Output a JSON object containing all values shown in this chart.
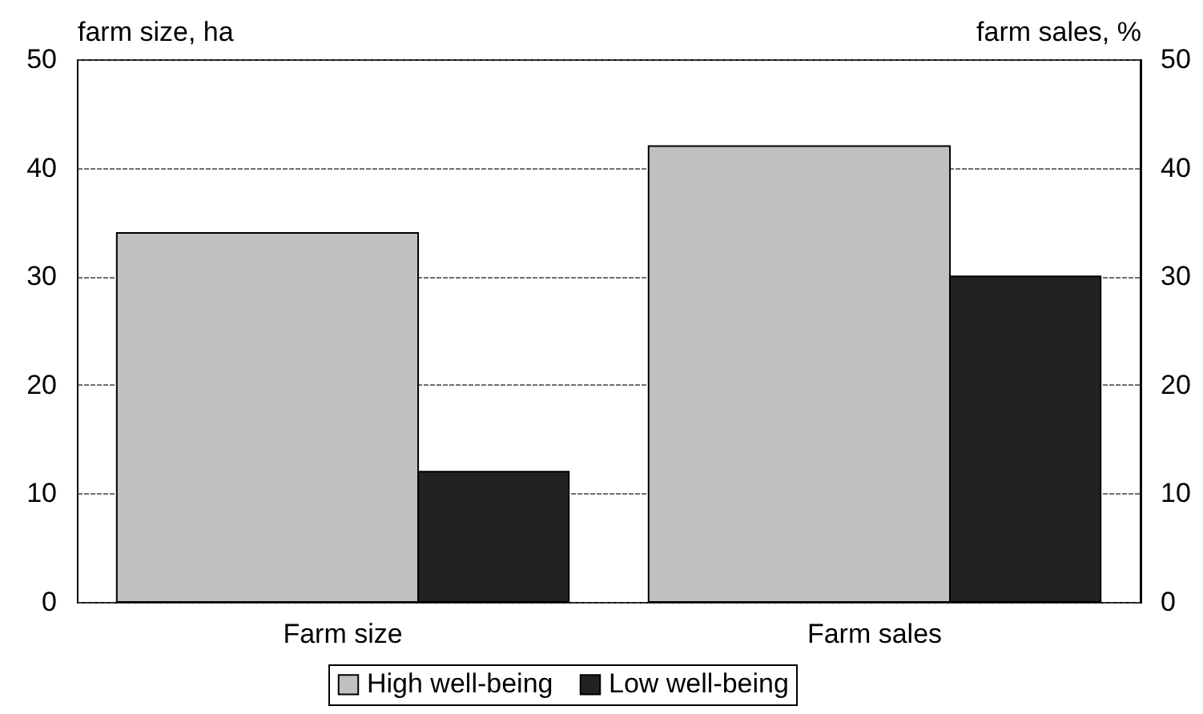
{
  "chart_data": {
    "type": "bar",
    "categories": [
      "Farm size",
      "Farm sales"
    ],
    "series": [
      {
        "name": "High well-being",
        "color": "#c0c0c0",
        "values": [
          34,
          42
        ]
      },
      {
        "name": "Low well-being",
        "color": "#222222",
        "values": [
          12,
          30
        ]
      }
    ],
    "ylabel": "farm size, ha",
    "y2label": "farm sales, %",
    "ylim": [
      0,
      50
    ],
    "yticks": [
      0,
      10,
      20,
      30,
      40,
      50
    ],
    "y2lim": [
      0,
      50
    ],
    "y2ticks": [
      0,
      10,
      20,
      30,
      40,
      50
    ],
    "grid": "y",
    "legend": "bottom"
  }
}
